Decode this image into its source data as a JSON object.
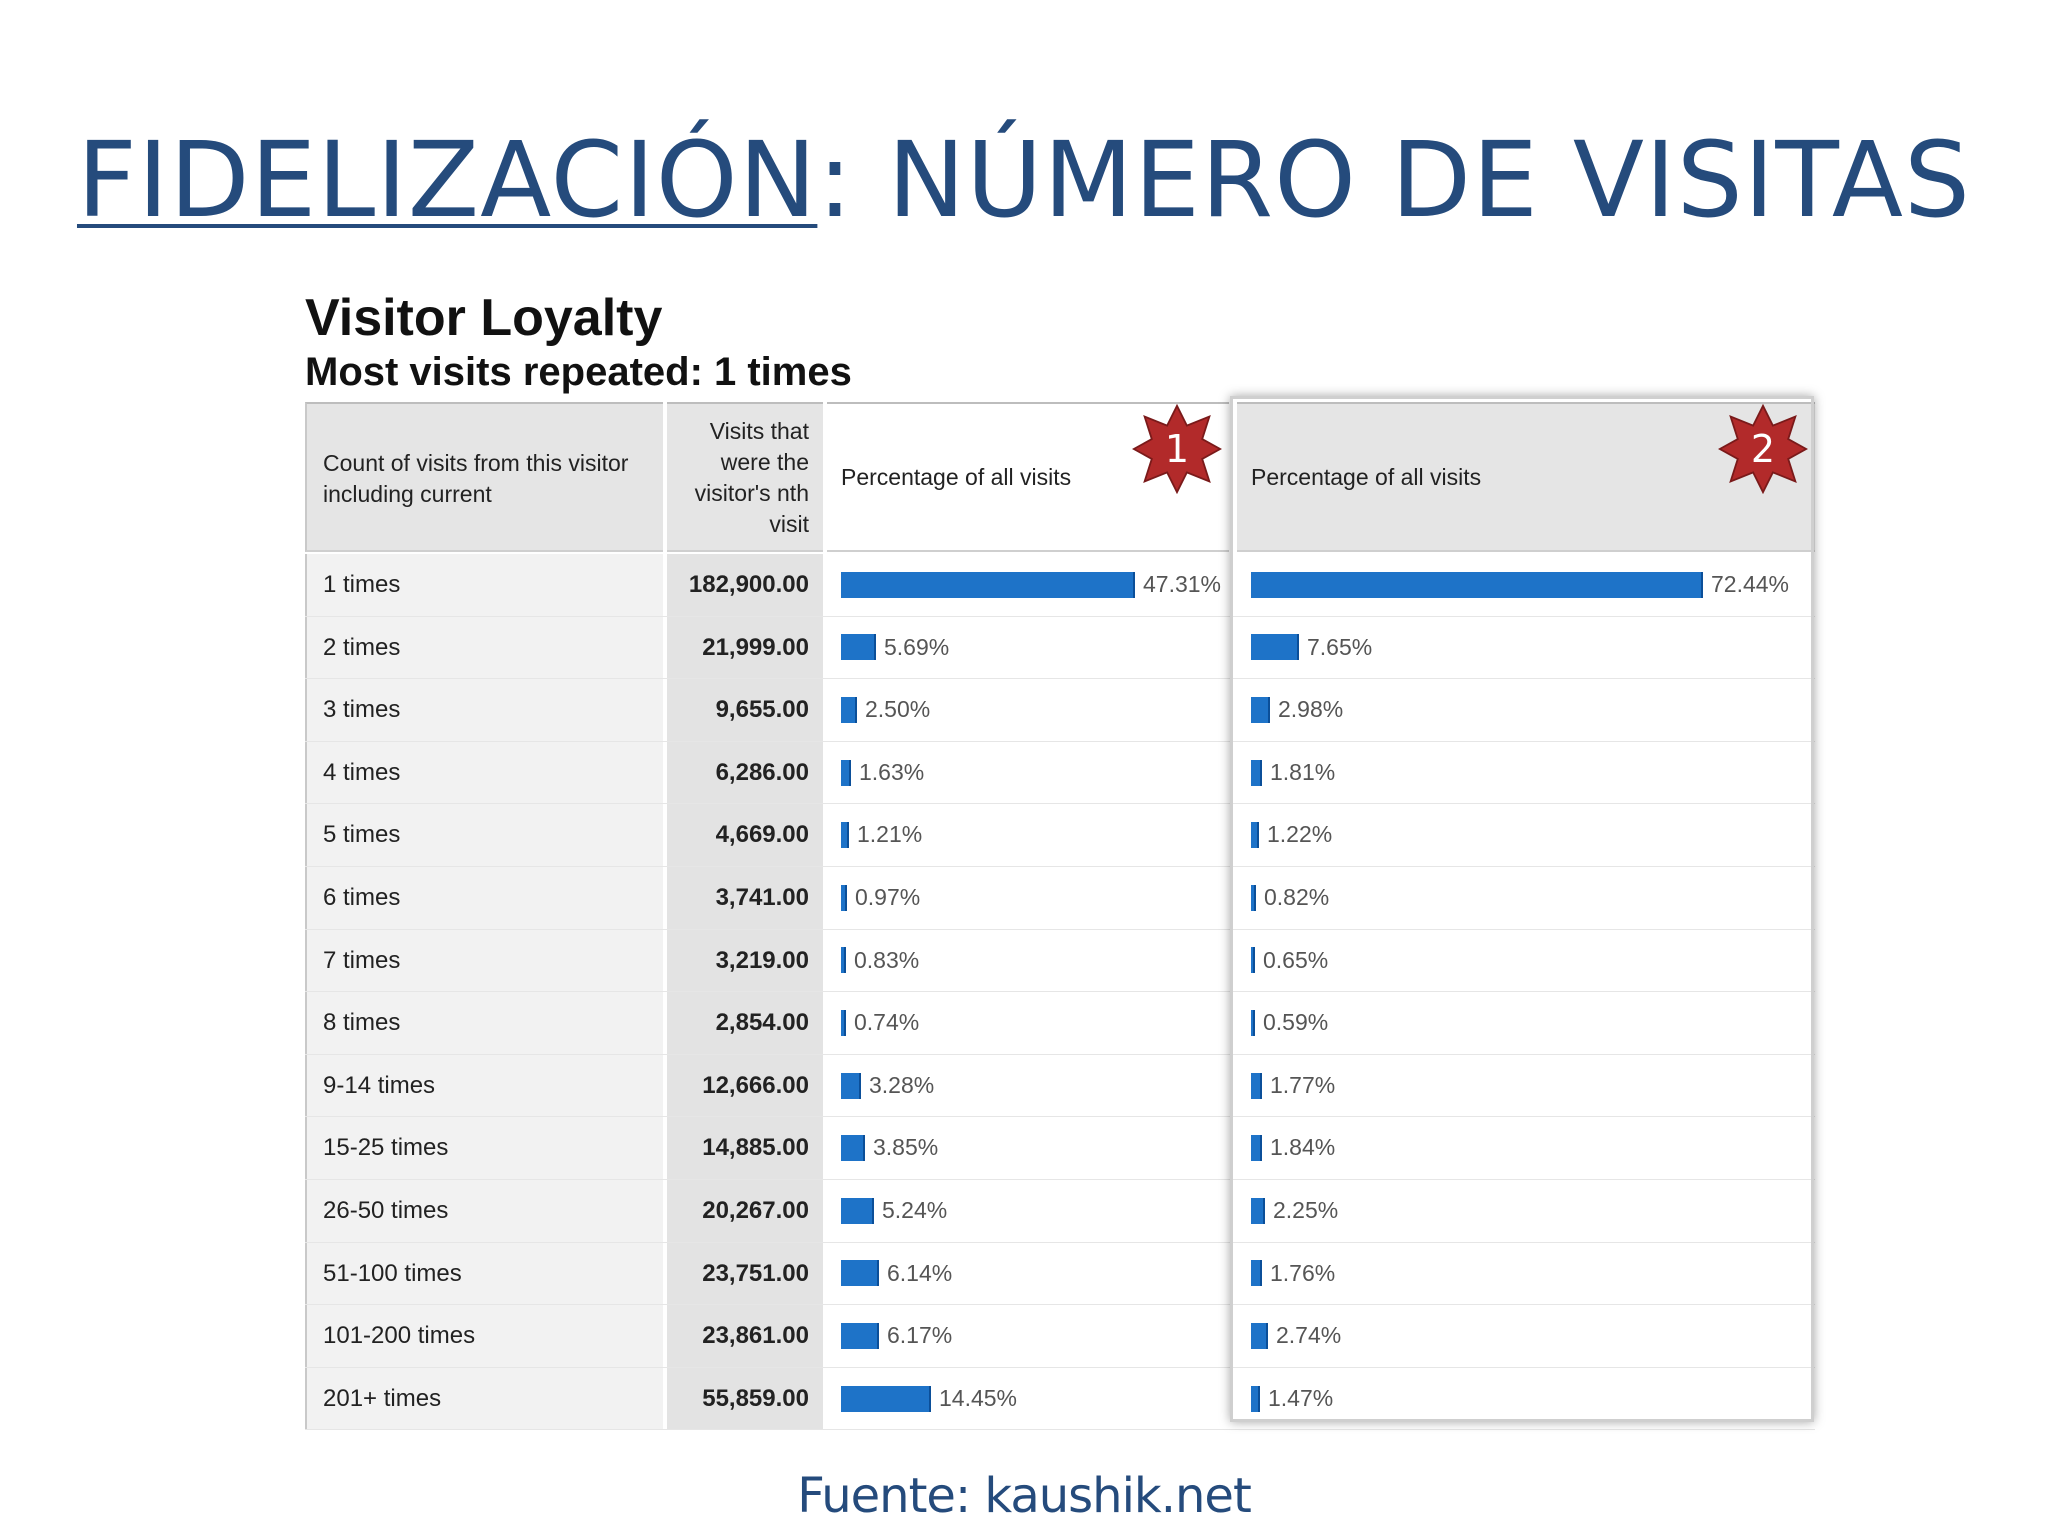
{
  "slide": {
    "title_part1": "FIDELIZACIÓN",
    "title_part2": ": NÚMERO DE VISITAS",
    "footer": "Fuente: kaushik.net"
  },
  "report": {
    "title": "Visitor Loyalty",
    "subtitle": "Most visits repeated: 1 times",
    "headers": {
      "count": "Count of visits from this visitor including current",
      "visits": "Visits that were the visitor's nth visit",
      "pct1": "Percentage of all visits",
      "pct2": "Percentage of all visits"
    },
    "badges": [
      "1",
      "2"
    ],
    "rows": [
      {
        "label": "1 times",
        "visits": "182,900.00",
        "pct1": 47.31,
        "pct1_label": "47.31%",
        "pct2": 72.44,
        "pct2_label": "72.44%"
      },
      {
        "label": "2 times",
        "visits": "21,999.00",
        "pct1": 5.69,
        "pct1_label": "5.69%",
        "pct2": 7.65,
        "pct2_label": "7.65%"
      },
      {
        "label": "3 times",
        "visits": "9,655.00",
        "pct1": 2.5,
        "pct1_label": "2.50%",
        "pct2": 2.98,
        "pct2_label": "2.98%"
      },
      {
        "label": "4 times",
        "visits": "6,286.00",
        "pct1": 1.63,
        "pct1_label": "1.63%",
        "pct2": 1.81,
        "pct2_label": "1.81%"
      },
      {
        "label": "5 times",
        "visits": "4,669.00",
        "pct1": 1.21,
        "pct1_label": "1.21%",
        "pct2": 1.22,
        "pct2_label": "1.22%"
      },
      {
        "label": "6 times",
        "visits": "3,741.00",
        "pct1": 0.97,
        "pct1_label": "0.97%",
        "pct2": 0.82,
        "pct2_label": "0.82%"
      },
      {
        "label": "7 times",
        "visits": "3,219.00",
        "pct1": 0.83,
        "pct1_label": "0.83%",
        "pct2": 0.65,
        "pct2_label": "0.65%"
      },
      {
        "label": "8 times",
        "visits": "2,854.00",
        "pct1": 0.74,
        "pct1_label": "0.74%",
        "pct2": 0.59,
        "pct2_label": "0.59%"
      },
      {
        "label": "9-14 times",
        "visits": "12,666.00",
        "pct1": 3.28,
        "pct1_label": "3.28%",
        "pct2": 1.77,
        "pct2_label": "1.77%"
      },
      {
        "label": "15-25 times",
        "visits": "14,885.00",
        "pct1": 3.85,
        "pct1_label": "3.85%",
        "pct2": 1.84,
        "pct2_label": "1.84%"
      },
      {
        "label": "26-50 times",
        "visits": "20,267.00",
        "pct1": 5.24,
        "pct1_label": "5.24%",
        "pct2": 2.25,
        "pct2_label": "2.25%"
      },
      {
        "label": "51-100 times",
        "visits": "23,751.00",
        "pct1": 6.14,
        "pct1_label": "6.14%",
        "pct2": 1.76,
        "pct2_label": "1.76%"
      },
      {
        "label": "101-200 times",
        "visits": "23,861.00",
        "pct1": 6.17,
        "pct1_label": "6.17%",
        "pct2": 2.74,
        "pct2_label": "2.74%"
      },
      {
        "label": "201+ times",
        "visits": "55,859.00",
        "pct1": 14.45,
        "pct1_label": "14.45%",
        "pct2": 1.47,
        "pct2_label": "1.47%"
      }
    ]
  },
  "colors": {
    "title": "#254b7c",
    "bar": "#1e73c8",
    "badge": "#b22a2a"
  },
  "icons": {
    "badge": "red-star-badge-icon"
  }
}
